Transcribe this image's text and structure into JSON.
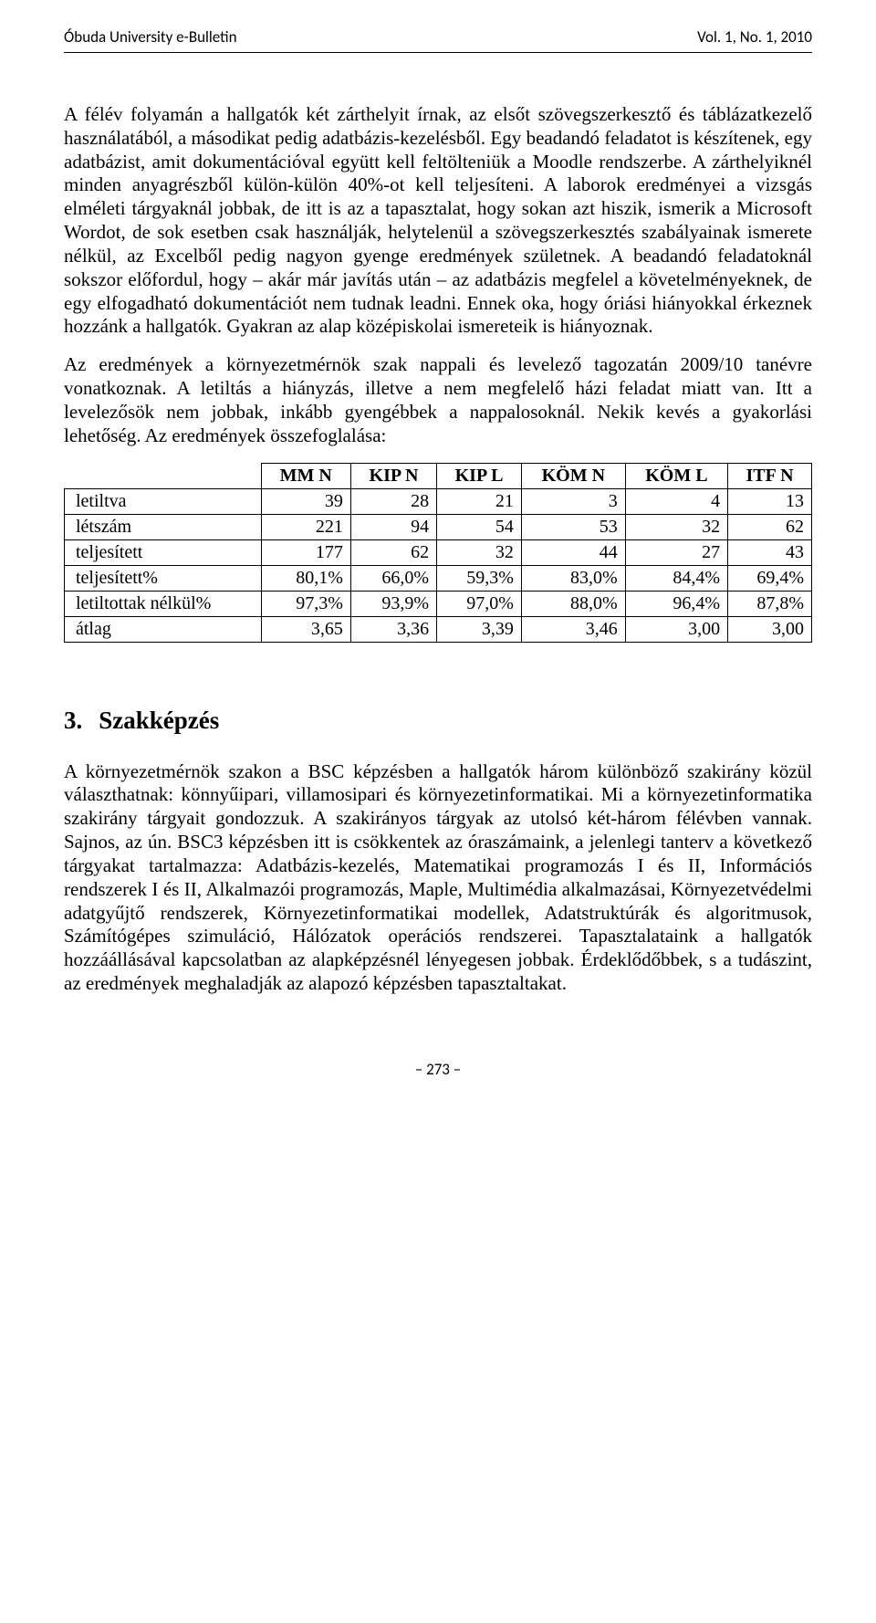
{
  "header": {
    "left": "Óbuda University e-Bulletin",
    "right": "Vol. 1, No. 1, 2010"
  },
  "paragraphs": {
    "p1": "A félév folyamán a hallgatók két zárthelyit írnak, az elsőt szövegszerkesztő és táblázatkezelő használatából, a másodikat pedig adatbázis-kezelésből. Egy beadandó feladatot is készítenek, egy adatbázist, amit dokumentációval együtt kell feltölteniük a Moodle rendszerbe. A zárthelyiknél minden anyagrészből külön-külön 40%-ot kell teljesíteni. A laborok eredményei a vizsgás elméleti tárgyaknál jobbak, de itt is az a tapasztalat, hogy sokan azt hiszik, ismerik a Microsoft Wordot, de sok esetben csak használják, helytelenül a szövegszerkesztés szabályainak ismerete nélkül, az Excelből pedig nagyon gyenge eredmények születnek. A beadandó feladatoknál sokszor előfordul, hogy – akár már javítás után – az adatbázis megfelel a követelményeknek, de egy elfogadható dokumentációt nem tudnak leadni. Ennek oka, hogy óriási hiányokkal érkeznek hozzánk a hallgatók. Gyakran az alap középiskolai ismereteik is hiányoznak.",
    "p2": "Az eredmények a környezetmérnök szak nappali és levelező tagozatán 2009/10 tanévre vonatkoznak. A letiltás a hiányzás, illetve a nem megfelelő házi feladat miatt van. Itt a levelezősök nem jobbak, inkább gyengébbek a nappalosoknál. Nekik kevés a gyakorlási lehetőség. Az eredmények összefoglalása:",
    "p3": "A környezetmérnök szakon a BSC képzésben a hallgatók három különböző szakirány közül választhatnak: könnyűipari, villamosipari és környezetinformatikai. Mi a környezetinformatika szakirány tárgyait gondozzuk. A szakirányos tárgyak az utolsó két-három félévben vannak. Sajnos, az ún. BSC3 képzésben itt is csökkentek az óraszámaink, a jelenlegi tanterv a következő tárgyakat tartalmazza: Adatbázis-kezelés, Matematikai programozás I és II, Információs rendszerek I és II, Alkalmazói programozás, Maple, Multimédia alkalmazásai, Környezetvédelmi adatgyűjtő rendszerek, Környezetinformatikai modellek, Adatstruktúrák és algoritmusok, Számítógépes szimuláció, Hálózatok operációs rendszerei. Tapasztalataink a hallgatók hozzáállásával kapcsolatban az alapképzésnél lényegesen jobbak. Érdeklődőbbek, s a tudászint, az eredmények meghaladják az alapozó képzésben tapasztaltakat."
  },
  "table": {
    "columns": [
      "MM N",
      "KIP N",
      "KIP L",
      "KÖM N",
      "KÖM L",
      "ITF N"
    ],
    "rows": [
      {
        "label": "letiltva",
        "cells": [
          "39",
          "28",
          "21",
          "3",
          "4",
          "13"
        ]
      },
      {
        "label": "létszám",
        "cells": [
          "221",
          "94",
          "54",
          "53",
          "32",
          "62"
        ]
      },
      {
        "label": "teljesített",
        "cells": [
          "177",
          "62",
          "32",
          "44",
          "27",
          "43"
        ]
      },
      {
        "label": "teljesített%",
        "cells": [
          "80,1%",
          "66,0%",
          "59,3%",
          "83,0%",
          "84,4%",
          "69,4%"
        ]
      },
      {
        "label": "letiltottak nélkül%",
        "cells": [
          "97,3%",
          "93,9%",
          "97,0%",
          "88,0%",
          "96,4%",
          "87,8%"
        ]
      },
      {
        "label": "átlag",
        "cells": [
          "3,65",
          "3,36",
          "3,39",
          "3,46",
          "3,00",
          "3,00"
        ]
      }
    ]
  },
  "section": {
    "number": "3.",
    "title": "Szakképzés"
  },
  "footer": "– 273 –"
}
